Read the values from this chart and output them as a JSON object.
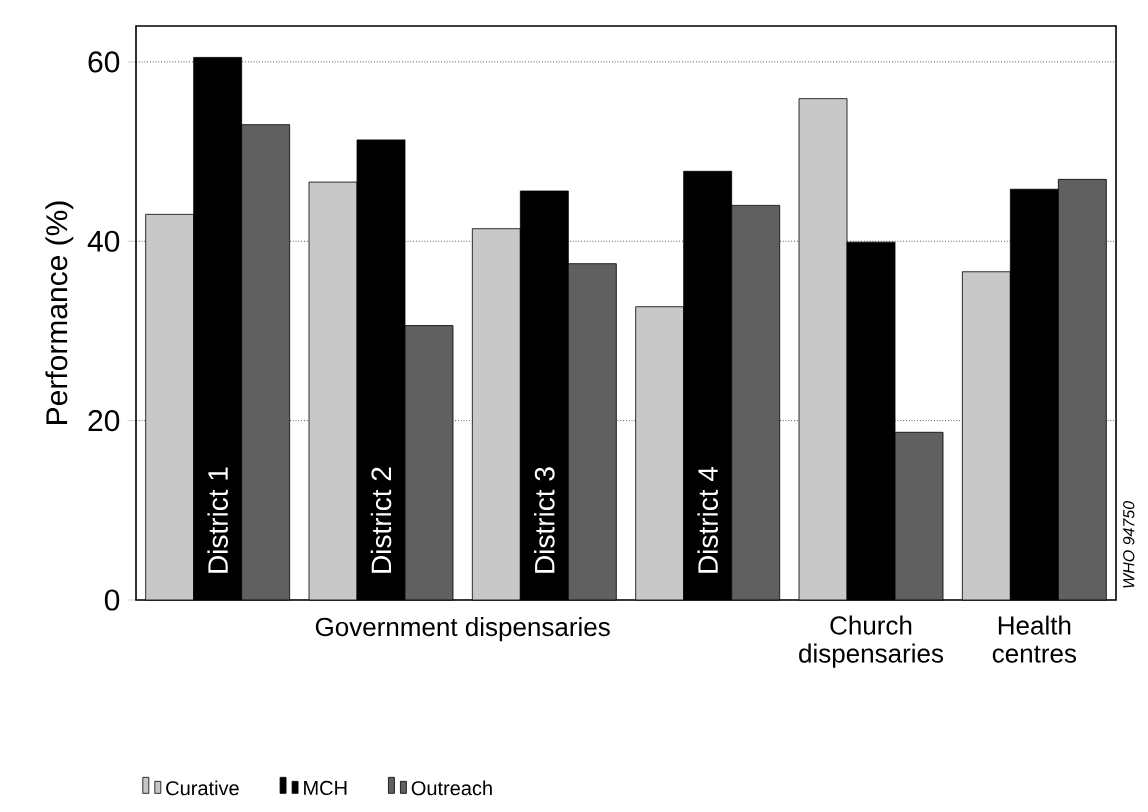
{
  "chart_data": {
    "type": "bar",
    "ylabel": "Performance (%)",
    "categories": [
      "District 1",
      "District 2",
      "District 3",
      "District 4",
      "Church dispensaries",
      "Health centres"
    ],
    "series": [
      {
        "name": "Curative",
        "color": "#c8c8c8",
        "values": [
          43,
          46.6,
          41.4,
          32.7,
          55.9,
          36.6
        ]
      },
      {
        "name": "MCH",
        "color": "#000000",
        "values": [
          60.5,
          51.3,
          45.6,
          47.8,
          39.9,
          45.8
        ]
      },
      {
        "name": "Outreach",
        "color": "#606060",
        "values": [
          53,
          30.6,
          37.5,
          44,
          18.7,
          46.9
        ]
      }
    ],
    "ylim": [
      0,
      64
    ],
    "yticks": [
      0,
      20,
      40,
      60
    ],
    "grid": "y",
    "legend": "bottom left",
    "annotations": [
      "Government dispensaries",
      "WHO 94750"
    ]
  }
}
